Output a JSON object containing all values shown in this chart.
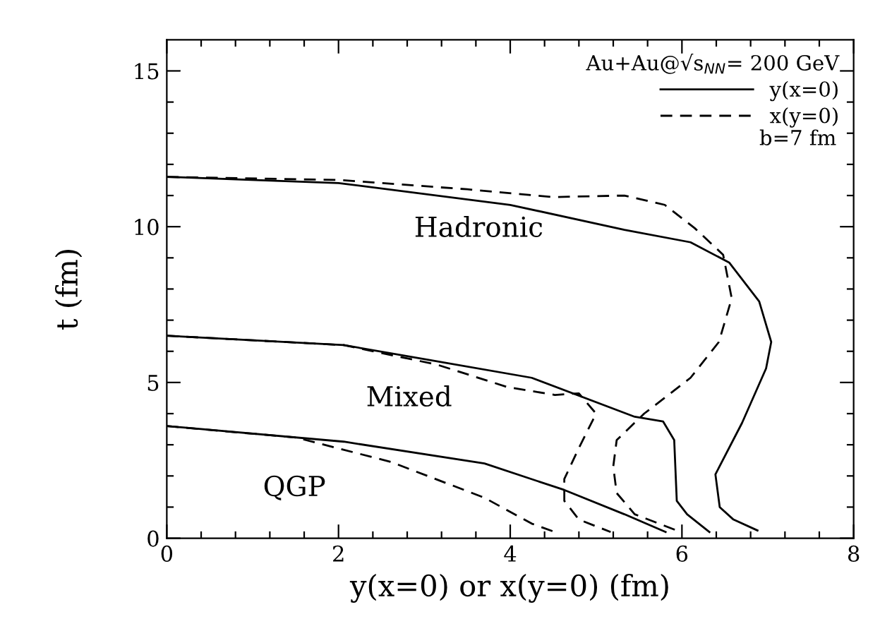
{
  "chart_data": {
    "type": "line",
    "xlabel": "y(x=0) or x(y=0) (fm)",
    "ylabel": "t (fm)",
    "legend_title": "Au+Au@√s$_{NN}$= 200 GeV",
    "legend": "top right",
    "annotations": [
      "Hadronic",
      "Mixed",
      "QGP",
      "b=7 fm"
    ],
    "xlim": [
      0,
      8
    ],
    "ylim": [
      0,
      16
    ],
    "xticks": [
      0,
      {
        "value": 0.4,
        "label": null
      },
      {
        "value": 0.8,
        "label": null
      },
      {
        "value": 1.2,
        "label": null
      },
      {
        "value": 1.6,
        "label": null
      },
      2,
      {
        "value": 2.4,
        "label": null
      },
      {
        "value": 2.8,
        "label": null
      },
      {
        "value": 3.2,
        "label": null
      },
      {
        "value": 3.6,
        "label": null
      },
      4,
      {
        "value": 4.4,
        "label": null
      },
      {
        "value": 4.8,
        "label": null
      },
      {
        "value": 5.2,
        "label": null
      },
      {
        "value": 5.6,
        "label": null
      },
      6,
      {
        "value": 6.4,
        "label": null
      },
      {
        "value": 6.8,
        "label": null
      },
      {
        "value": 7.2,
        "label": null
      },
      {
        "value": 7.6,
        "label": null
      },
      8
    ],
    "yticks": [
      0,
      {
        "value": 1,
        "label": null
      },
      {
        "value": 2,
        "label": null
      },
      {
        "value": 3,
        "label": null
      },
      {
        "value": 4,
        "label": null
      },
      5,
      {
        "value": 6,
        "label": null
      },
      {
        "value": 7,
        "label": null
      },
      {
        "value": 8,
        "label": null
      },
      {
        "value": 9,
        "label": null
      },
      10,
      {
        "value": 11,
        "label": null
      },
      {
        "value": 12,
        "label": null
      },
      {
        "value": 13,
        "label": null
      },
      {
        "value": 14,
        "label": null
      },
      15
    ],
    "series": [
      {
        "name": "y(x=0)",
        "color": "#000000",
        "line_style": "solid",
        "x": [
          0,
          2,
          4,
          5.33,
          6.1,
          6.55,
          6.9,
          7.04,
          6.98,
          6.7,
          6.39,
          6.44,
          6.6,
          6.88
        ],
        "values": [
          11.6,
          11.4,
          10.7,
          9.9,
          9.5,
          8.85,
          7.6,
          6.3,
          5.45,
          3.7,
          2.05,
          1.0,
          0.6,
          0.25
        ]
      },
      {
        "name": "x(y=0)",
        "color": "#000000",
        "line_style": "dashed",
        "x": [
          0,
          2,
          3.5,
          4.5,
          5.33,
          5.8,
          6.15,
          6.48,
          6.58,
          6.43,
          6.1,
          5.56,
          5.24,
          5.2,
          5.24,
          5.45,
          5.94
        ],
        "values": [
          11.6,
          11.5,
          11.2,
          10.95,
          11.0,
          10.7,
          9.95,
          9.1,
          7.7,
          6.3,
          5.15,
          4.0,
          3.15,
          2.3,
          1.45,
          0.77,
          0.25
        ]
      },
      {
        "color": "#000000",
        "line_style": "solid",
        "x": [
          0,
          2.06,
          4.25,
          5.45,
          5.78,
          5.91,
          5.94,
          6.06,
          6.32
        ],
        "values": [
          6.5,
          6.2,
          5.15,
          3.9,
          3.75,
          3.15,
          1.2,
          0.77,
          0.2
        ]
      },
      {
        "color": "#000000",
        "line_style": "dashed",
        "x": [
          0,
          2.06,
          3.15,
          3.97,
          4.52,
          4.8,
          5.0,
          4.8,
          4.63,
          4.63,
          4.8,
          5.17
        ],
        "values": [
          6.5,
          6.2,
          5.57,
          4.85,
          4.6,
          4.65,
          4.0,
          2.9,
          1.9,
          1.2,
          0.6,
          0.2
        ]
      },
      {
        "color": "#000000",
        "line_style": "solid",
        "x": [
          0,
          2.06,
          3.7,
          4.63,
          5.33,
          5.81
        ],
        "values": [
          3.6,
          3.1,
          2.4,
          1.55,
          0.77,
          0.2
        ]
      },
      {
        "color": "#000000",
        "line_style": "dashed",
        "x": [
          0,
          1.51,
          2.61,
          3.7,
          4.25,
          4.52
        ],
        "values": [
          3.6,
          3.23,
          2.45,
          1.3,
          0.47,
          0.2
        ]
      }
    ]
  }
}
